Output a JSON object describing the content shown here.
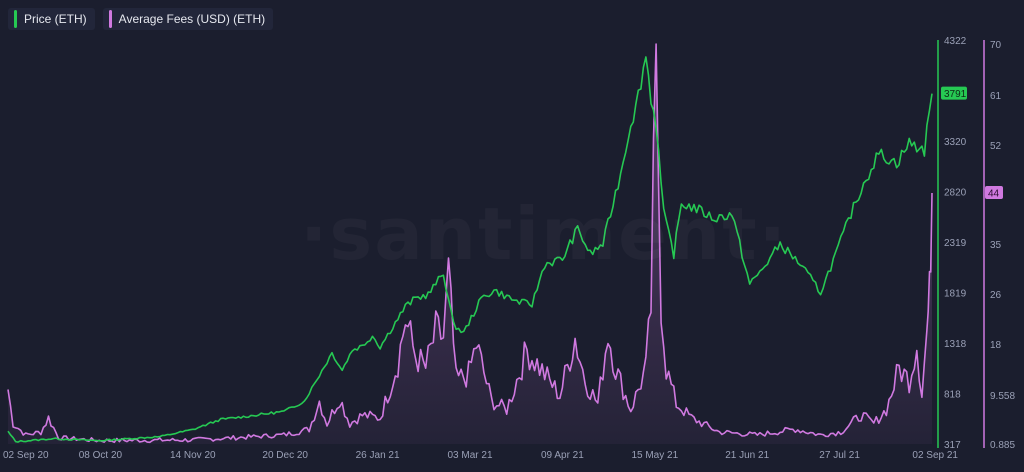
{
  "legend": {
    "price_label": "Price (ETH)",
    "fees_label": "Average Fees (USD) (ETH)"
  },
  "watermark": "·santiment·",
  "colors": {
    "background": "#1b1e2e",
    "price": "#26c953",
    "fees": "#d079e0",
    "grid": "#2a2e42",
    "text": "#9aa0b6"
  },
  "chart_data": {
    "type": "line",
    "categories": [
      "02 Sep 20",
      "08 Oct 20",
      "14 Nov 20",
      "20 Dec 20",
      "26 Jan 21",
      "03 Mar 21",
      "09 Apr 21",
      "15 May 21",
      "21 Jun 21",
      "27 Jul 21",
      "02 Sep 21"
    ],
    "x_range": [
      "2020-09-02",
      "2021-09-02"
    ],
    "price_axis": {
      "ticks": [
        "4322",
        "3320",
        "2820",
        "2319",
        "1819",
        "1318",
        "818",
        "317"
      ],
      "range": [
        317,
        4322
      ],
      "current": "3791"
    },
    "fees_axis": {
      "ticks": [
        "70",
        "61",
        "52",
        "44",
        "35",
        "26",
        "18",
        "9.558",
        "0.885"
      ],
      "current": "44"
    },
    "series": [
      {
        "name": "Price (ETH)",
        "axis": "price",
        "anchors": [
          [
            "2020-09-02",
            440
          ],
          [
            "2020-09-05",
            340
          ],
          [
            "2020-09-20",
            370
          ],
          [
            "2020-10-08",
            350
          ],
          [
            "2020-11-01",
            390
          ],
          [
            "2020-11-14",
            460
          ],
          [
            "2020-11-25",
            560
          ],
          [
            "2020-12-05",
            590
          ],
          [
            "2020-12-20",
            640
          ],
          [
            "2020-12-28",
            740
          ],
          [
            "2021-01-03",
            1000
          ],
          [
            "2021-01-08",
            1220
          ],
          [
            "2021-01-12",
            1050
          ],
          [
            "2021-01-16",
            1250
          ],
          [
            "2021-01-20",
            1290
          ],
          [
            "2021-01-24",
            1390
          ],
          [
            "2021-01-27",
            1280
          ],
          [
            "2021-02-02",
            1520
          ],
          [
            "2021-02-06",
            1680
          ],
          [
            "2021-02-10",
            1760
          ],
          [
            "2021-02-15",
            1800
          ],
          [
            "2021-02-19",
            1940
          ],
          [
            "2021-02-21",
            2010
          ],
          [
            "2021-02-25",
            1500
          ],
          [
            "2021-03-01",
            1420
          ],
          [
            "2021-03-08",
            1760
          ],
          [
            "2021-03-13",
            1840
          ],
          [
            "2021-03-22",
            1730
          ],
          [
            "2021-03-28",
            1700
          ],
          [
            "2021-04-02",
            2100
          ],
          [
            "2021-04-09",
            2150
          ],
          [
            "2021-04-15",
            2450
          ],
          [
            "2021-04-20",
            2200
          ],
          [
            "2021-04-25",
            2300
          ],
          [
            "2021-05-02",
            3000
          ],
          [
            "2021-05-06",
            3500
          ],
          [
            "2021-05-08",
            3650
          ],
          [
            "2021-05-12",
            4170
          ],
          [
            "2021-05-14",
            3750
          ],
          [
            "2021-05-16",
            3500
          ],
          [
            "2021-05-19",
            2600
          ],
          [
            "2021-05-23",
            2200
          ],
          [
            "2021-05-26",
            2700
          ],
          [
            "2021-06-01",
            2650
          ],
          [
            "2021-06-08",
            2550
          ],
          [
            "2021-06-15",
            2600
          ],
          [
            "2021-06-22",
            1900
          ],
          [
            "2021-06-27",
            2050
          ],
          [
            "2021-07-04",
            2300
          ],
          [
            "2021-07-12",
            2100
          ],
          [
            "2021-07-20",
            1820
          ],
          [
            "2021-07-26",
            2200
          ],
          [
            "2021-08-01",
            2600
          ],
          [
            "2021-08-06",
            2900
          ],
          [
            "2021-08-12",
            3200
          ],
          [
            "2021-08-19",
            3100
          ],
          [
            "2021-08-24",
            3300
          ],
          [
            "2021-08-30",
            3230
          ],
          [
            "2021-09-02",
            3791
          ]
        ]
      },
      {
        "name": "Average Fees (USD) (ETH)",
        "axis": "fees",
        "anchors": [
          [
            "2020-09-02",
            10.5
          ],
          [
            "2020-09-04",
            4.5
          ],
          [
            "2020-09-09",
            2.5
          ],
          [
            "2020-09-15",
            3.0
          ],
          [
            "2020-09-18",
            5.5
          ],
          [
            "2020-09-22",
            2.0
          ],
          [
            "2020-10-08",
            1.5
          ],
          [
            "2020-11-14",
            1.6
          ],
          [
            "2020-12-01",
            2.0
          ],
          [
            "2020-12-20",
            2.5
          ],
          [
            "2020-12-30",
            3.5
          ],
          [
            "2021-01-03",
            8.5
          ],
          [
            "2021-01-06",
            4.5
          ],
          [
            "2021-01-11",
            9.0
          ],
          [
            "2021-01-15",
            4.5
          ],
          [
            "2021-01-20",
            6.0
          ],
          [
            "2021-01-27",
            5.5
          ],
          [
            "2021-02-03",
            15.0
          ],
          [
            "2021-02-06",
            22.0
          ],
          [
            "2021-02-10",
            16.0
          ],
          [
            "2021-02-14",
            14.0
          ],
          [
            "2021-02-18",
            20.0
          ],
          [
            "2021-02-21",
            19.0
          ],
          [
            "2021-02-23",
            29.5
          ],
          [
            "2021-02-26",
            12.0
          ],
          [
            "2021-03-03",
            13.0
          ],
          [
            "2021-03-06",
            18.0
          ],
          [
            "2021-03-12",
            8.5
          ],
          [
            "2021-03-18",
            7.0
          ],
          [
            "2021-03-26",
            17.0
          ],
          [
            "2021-04-02",
            13.0
          ],
          [
            "2021-04-08",
            9.5
          ],
          [
            "2021-04-14",
            19.0
          ],
          [
            "2021-04-18",
            12.0
          ],
          [
            "2021-04-23",
            8.0
          ],
          [
            "2021-04-27",
            20.0
          ],
          [
            "2021-04-30",
            14.0
          ],
          [
            "2021-05-06",
            7.0
          ],
          [
            "2021-05-12",
            14.0
          ],
          [
            "2021-05-14",
            24.0
          ],
          [
            "2021-05-16",
            68.0
          ],
          [
            "2021-05-18",
            25.0
          ],
          [
            "2021-05-20",
            14.0
          ],
          [
            "2021-05-24",
            8.0
          ],
          [
            "2021-05-30",
            5.5
          ],
          [
            "2021-06-10",
            3.0
          ],
          [
            "2021-06-25",
            2.5
          ],
          [
            "2021-07-10",
            3.5
          ],
          [
            "2021-07-20",
            2.5
          ],
          [
            "2021-07-28",
            3.0
          ],
          [
            "2021-08-05",
            6.0
          ],
          [
            "2021-08-10",
            4.5
          ],
          [
            "2021-08-15",
            7.0
          ],
          [
            "2021-08-20",
            14.0
          ],
          [
            "2021-08-24",
            12.0
          ],
          [
            "2021-08-27",
            18.0
          ],
          [
            "2021-08-29",
            10.0
          ],
          [
            "2021-08-31",
            20.0
          ],
          [
            "2021-09-01",
            26.0
          ],
          [
            "2021-09-02",
            44.0
          ]
        ]
      }
    ],
    "grid": false,
    "legend_position": "top-left"
  }
}
